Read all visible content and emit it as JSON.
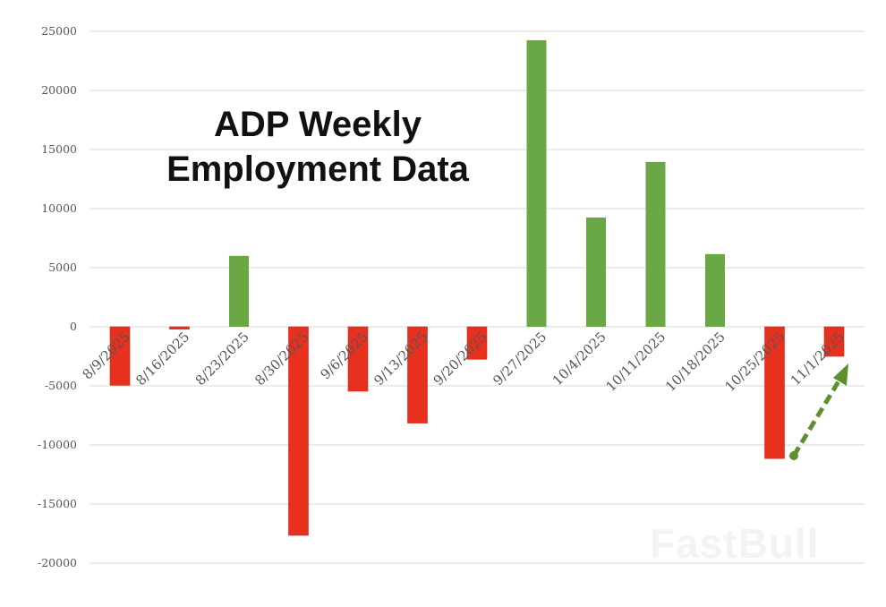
{
  "title": {
    "line1": "ADP Weekly",
    "line2": "Employment Data"
  },
  "watermark": "FastBull",
  "colors": {
    "positive": "#6aa845",
    "negative": "#e8301f",
    "arrow": "#5d8f2f",
    "grid": "#d9d9d9",
    "axis_text": "#555555"
  },
  "chart_data": {
    "type": "bar",
    "title": "ADP Weekly Employment Data",
    "xlabel": "",
    "ylabel": "",
    "ylim": [
      -20000,
      25000
    ],
    "yticks": [
      25000,
      20000,
      15000,
      10000,
      5000,
      0,
      -5000,
      -10000,
      -15000,
      -20000
    ],
    "grid": true,
    "legend": null,
    "categories": [
      "8/9/2025",
      "8/16/2025",
      "8/23/2025",
      "8/30/2025",
      "9/6/2025",
      "9/13/2025",
      "9/20/2025",
      "9/27/2025",
      "10/4/2025",
      "10/11/2025",
      "10/18/2025",
      "10/25/2025",
      "11/1/2025"
    ],
    "values": [
      -4950,
      -200,
      6000,
      -17650,
      -5450,
      -8150,
      -2750,
      24250,
      9250,
      13950,
      6150,
      -11150,
      -2500
    ],
    "annotations": [
      {
        "type": "dashed-arrow",
        "from": "10/25/2025 bar bottom",
        "to": "11/1/2025 bar",
        "color": "#5d8f2f",
        "meaning": "improvement"
      }
    ]
  }
}
